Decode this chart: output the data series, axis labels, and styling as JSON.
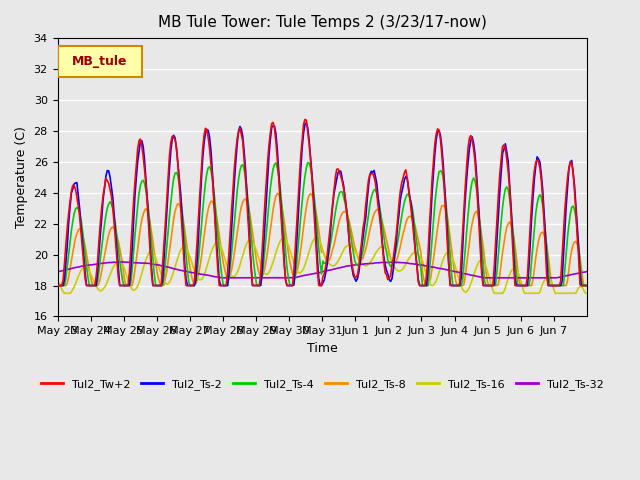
{
  "title": "MB Tule Tower: Tule Temps 2 (3/23/17-now)",
  "xlabel": "Time",
  "ylabel": "Temperature (C)",
  "ylim": [
    16,
    34
  ],
  "yticks": [
    16,
    18,
    20,
    22,
    24,
    26,
    28,
    30,
    32,
    34
  ],
  "background_color": "#e8e8e8",
  "plot_bg_color": "#e8e8e8",
  "grid_color": "#ffffff",
  "series_colors": {
    "Tul2_Tw+2": "#ff0000",
    "Tul2_Ts-2": "#0000ff",
    "Tul2_Ts-4": "#00cc00",
    "Tul2_Ts-8": "#ff8800",
    "Tul2_Ts-16": "#cccc00",
    "Tul2_Ts-32": "#9900cc"
  },
  "xtick_labels": [
    "May 23",
    "May 24",
    "May 25",
    "May 26",
    "May 27",
    "May 28",
    "May 29",
    "May 30",
    "May 31",
    "Jun 1",
    "Jun 2",
    "Jun 3",
    "Jun 4",
    "Jun 5",
    "Jun 6",
    "Jun 7"
  ],
  "legend_label": "MB_tule",
  "legend_bg": "#ffffaa",
  "legend_border": "#cc8800"
}
